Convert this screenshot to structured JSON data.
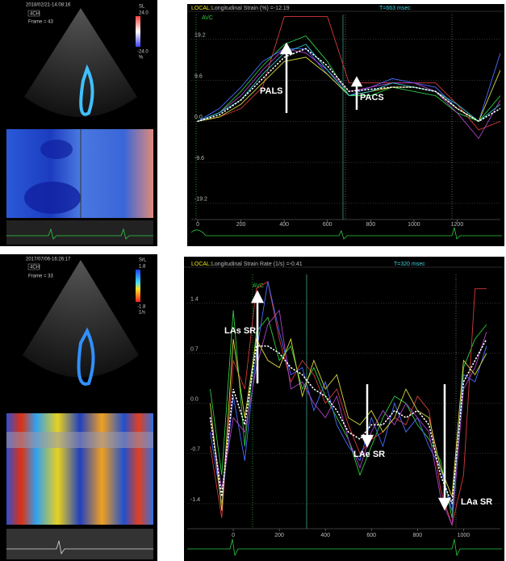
{
  "panels": [
    {
      "date": "2018/02/21-14:08:16",
      "view": "4CH",
      "frame": "Frame = 43",
      "scale_name": "SL",
      "scale_max": "24.0",
      "scale_min": "-24.0",
      "unit": "%"
    },
    {
      "date": "2017/07/06-16:26:17",
      "view": "4CH",
      "frame": "Frame = 33",
      "scale_name": "SrL",
      "scale_max": "1.8",
      "scale_min": "-1.8",
      "unit": "1/s"
    }
  ],
  "chart_data": [
    {
      "type": "line",
      "label": "LOCAL:",
      "title": "Longitudinal Strain (%) =-12.19",
      "time": "T=663 msec",
      "event": "AVC",
      "annotations": [
        "PALS",
        "PACS"
      ],
      "x": [
        0,
        100,
        200,
        300,
        400,
        500,
        600,
        700,
        800,
        900,
        1000,
        1100,
        1200,
        1300,
        1400
      ],
      "series": [
        {
          "color": "#2ecc40",
          "values": [
            0,
            2,
            7,
            13,
            18,
            20,
            14,
            6,
            6,
            8,
            7,
            6,
            2,
            0,
            6
          ]
        },
        {
          "color": "#d43a3a",
          "values": [
            0,
            1,
            3,
            8,
            24.5,
            24.5,
            24.5,
            9,
            9,
            9,
            9,
            9,
            4,
            -2,
            0
          ]
        },
        {
          "color": "#4a6cff",
          "values": [
            0,
            3,
            8,
            14,
            17,
            17,
            11,
            6,
            8,
            10,
            9,
            8,
            3,
            0,
            16
          ]
        },
        {
          "color": "#b040c8",
          "values": [
            0,
            2,
            6,
            12,
            17,
            16,
            12,
            7,
            8,
            9,
            9,
            7,
            2,
            -4,
            5
          ]
        },
        {
          "color": "#d8d840",
          "values": [
            0,
            1,
            4,
            9,
            14,
            15,
            11,
            6,
            7,
            8,
            8,
            7,
            3,
            0,
            12
          ]
        },
        {
          "color": "#30c8d0",
          "values": [
            0,
            2,
            5,
            11,
            16,
            18,
            12,
            6,
            7,
            9,
            8,
            7,
            4,
            0,
            4
          ]
        },
        {
          "color": "#ffffff",
          "style": "dotted",
          "values": [
            0,
            1.5,
            5,
            10,
            15,
            17,
            13,
            7,
            7.5,
            8,
            8,
            7,
            3,
            0,
            3
          ]
        }
      ],
      "xlim": [
        -30,
        1400
      ],
      "ylim": [
        -23,
        25
      ],
      "xticks": [
        0,
        200,
        400,
        600,
        800,
        1000,
        1200
      ],
      "yticks": [
        19.2,
        9.6,
        {
          "value": 0,
          "label": "0.0"
        },
        -9.6,
        -19.2
      ],
      "grid": true
    },
    {
      "type": "line",
      "label": "LOCAL:",
      "title": "Longitudinal Strain Rate (1/s) =-0.41",
      "time": "T=320 msec",
      "event": "AVC",
      "annotations": [
        "LAs SR",
        "LAe SR",
        "LAa SR"
      ],
      "x": [
        -100,
        -50,
        0,
        50,
        100,
        150,
        200,
        250,
        300,
        350,
        400,
        450,
        500,
        550,
        600,
        650,
        700,
        750,
        800,
        850,
        900,
        950,
        1000,
        1050,
        1100
      ],
      "series": [
        {
          "color": "#2ecc40",
          "values": [
            0.2,
            -1.0,
            1.3,
            -0.6,
            1.0,
            1.2,
            0.6,
            0.8,
            0.2,
            0.5,
            0.1,
            -0.2,
            -0.5,
            -1.0,
            -0.6,
            -0.2,
            0.1,
            0.0,
            -0.3,
            -0.5,
            -0.8,
            -1.6,
            0.5,
            0.9,
            1.1
          ]
        },
        {
          "color": "#d43a3a",
          "values": [
            -0.6,
            -1.6,
            0.6,
            0.2,
            1.6,
            1.7,
            0.9,
            0.3,
            0.6,
            0.4,
            0.0,
            0.2,
            -0.3,
            -0.7,
            -0.5,
            -0.4,
            -0.2,
            -0.3,
            0.1,
            -0.1,
            -1.2,
            -1.7,
            -1.0,
            1.6,
            1.6
          ]
        },
        {
          "color": "#4a6cff",
          "values": [
            -0.4,
            -1.4,
            0.1,
            -0.8,
            0.7,
            1.7,
            1.0,
            0.4,
            0.5,
            -0.1,
            0.3,
            -0.3,
            -0.6,
            -0.8,
            -0.2,
            -0.6,
            0.0,
            -0.4,
            -0.2,
            -0.6,
            -0.9,
            -1.5,
            0.4,
            0.3,
            0.8
          ]
        },
        {
          "color": "#b040c8",
          "values": [
            -0.2,
            -1.2,
            -0.2,
            -0.4,
            0.5,
            1.1,
            1.3,
            0.2,
            0.3,
            0.0,
            -0.2,
            0.1,
            -0.5,
            -0.9,
            -0.4,
            -0.1,
            -0.3,
            0.0,
            -0.2,
            -0.4,
            -1.3,
            -1.7,
            0.2,
            0.5,
            1.0
          ]
        },
        {
          "color": "#d8d840",
          "values": [
            0.0,
            -1.5,
            0.9,
            -0.2,
            0.9,
            0.6,
            0.5,
            0.9,
            0.1,
            0.6,
            0.2,
            0.4,
            -0.2,
            -0.3,
            -0.1,
            -0.4,
            -0.2,
            0.2,
            -0.1,
            -0.2,
            -0.9,
            -1.3,
            0.6,
            0.4,
            0.7
          ]
        },
        {
          "color": "#ffffff",
          "style": "dotted",
          "values": [
            -0.2,
            -1.3,
            0.2,
            -0.3,
            0.8,
            0.8,
            0.7,
            0.5,
            0.4,
            0.2,
            0.1,
            -0.1,
            -0.4,
            -0.5,
            -0.3,
            -0.3,
            -0.1,
            -0.2,
            -0.1,
            -0.3,
            -1.0,
            -1.4,
            0.3,
            0.6,
            0.9
          ]
        }
      ],
      "xlim": [
        -200,
        1160
      ],
      "ylim": [
        -1.75,
        1.8
      ],
      "xticks": [
        0,
        200,
        400,
        600,
        800,
        1000
      ],
      "yticks": [
        1.4,
        0.7,
        {
          "value": 0,
          "label": "0.0"
        },
        -0.7,
        -1.4
      ],
      "grid": true
    }
  ]
}
